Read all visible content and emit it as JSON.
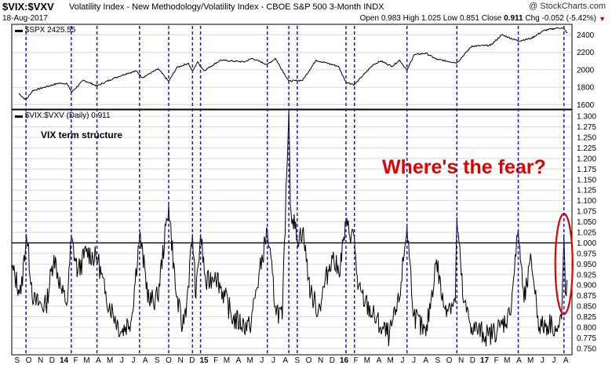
{
  "header": {
    "symbol": "$VIX:$VXV",
    "description": "Volatility Index - New Methodology/Volatility Index - CBOE S&P 500 3-Month INDX",
    "date": "18-Aug-2017",
    "brand": "@ StockCharts.com",
    "open_label": "Open",
    "open_value": "0.983",
    "high_label": "High",
    "high_value": "1.025",
    "low_label": "Low",
    "low_value": "0.851",
    "close_label": "Close",
    "close_value": "0.911",
    "chg_label": "Chg",
    "chg_value": "-0.052 (-5.42%)",
    "down_marker": "▼"
  },
  "colors": {
    "price_line": "#000000",
    "marker_lines": "#1a1acc",
    "annotation": "#e00000",
    "threshold": "#000000",
    "grid": "#d9d9d9"
  },
  "chart_data": [
    {
      "type": "line",
      "legend": "$SPX 2425.55",
      "ylim": [
        1550,
        2520
      ],
      "yticks": [
        1600,
        1800,
        2000,
        2200,
        2400
      ],
      "ytick_labels": [
        "1600",
        "1800",
        "2000",
        "2200",
        "2400"
      ],
      "last_value": 2425.55,
      "series": [
        {
          "x": [
            "2013-09-20",
            "2013-10-08",
            "2013-10-25",
            "2013-11-29",
            "2013-12-31",
            "2014-01-22",
            "2014-02-04",
            "2014-03-07",
            "2014-04-11",
            "2014-05-23",
            "2014-06-30",
            "2014-07-23",
            "2014-08-07",
            "2014-09-18",
            "2014-10-15",
            "2014-11-05",
            "2014-12-05",
            "2014-12-16",
            "2014-12-29",
            "2015-01-15",
            "2015-02-27",
            "2015-04-30",
            "2015-05-20",
            "2015-06-29",
            "2015-07-20",
            "2015-08-24",
            "2015-09-29",
            "2015-11-03",
            "2015-12-31",
            "2016-01-20",
            "2016-02-11",
            "2016-03-31",
            "2016-04-20",
            "2016-05-19",
            "2016-06-08",
            "2016-06-27",
            "2016-07-15",
            "2016-08-15",
            "2016-09-12",
            "2016-11-04",
            "2016-12-13",
            "2017-01-31",
            "2017-03-01",
            "2017-04-13",
            "2017-05-17",
            "2017-06-19",
            "2017-07-26",
            "2017-08-08",
            "2017-08-18"
          ],
          "values": [
            1725,
            1655,
            1760,
            1805,
            1845,
            1845,
            1745,
            1880,
            1815,
            1900,
            1960,
            1985,
            1910,
            2010,
            1865,
            2025,
            2075,
            1980,
            2090,
            1990,
            2110,
            2090,
            2130,
            2060,
            2130,
            1870,
            1880,
            2110,
            2040,
            1860,
            1830,
            2060,
            2100,
            2040,
            2110,
            1990,
            2170,
            2190,
            2120,
            2080,
            2270,
            2280,
            2400,
            2330,
            2360,
            2450,
            2480,
            2475,
            2425.55
          ]
        }
      ]
    },
    {
      "type": "line",
      "legend": "$VIX:$VXV (Daily) 0.911",
      "title": "VIX term structure",
      "ylim": [
        0.735,
        1.315
      ],
      "yticks": [
        0.75,
        0.775,
        0.8,
        0.825,
        0.85,
        0.875,
        0.9,
        0.925,
        0.95,
        0.975,
        1.0,
        1.025,
        1.05,
        1.075,
        1.1,
        1.125,
        1.15,
        1.175,
        1.2,
        1.225,
        1.25,
        1.275,
        1.3
      ],
      "ytick_labels": [
        "0.750",
        "0.775",
        "0.800",
        "0.825",
        "0.850",
        "0.875",
        "0.900",
        "0.925",
        "0.950",
        "0.975",
        "1.000",
        "1.025",
        "1.050",
        "1.075",
        "1.100",
        "1.125",
        "1.150",
        "1.175",
        "1.200",
        "1.225",
        "1.250",
        "1.275",
        "1.300"
      ],
      "threshold": 1.0,
      "last_value": 0.911,
      "annotation": "Where's the fear?",
      "series": [
        {
          "x": [
            "2013-09-01",
            "2013-09-25",
            "2013-10-09",
            "2013-10-28",
            "2013-11-29",
            "2013-12-20",
            "2014-01-10",
            "2014-01-24",
            "2014-02-03",
            "2014-02-20",
            "2014-03-14",
            "2014-04-14",
            "2014-05-02",
            "2014-06-13",
            "2014-07-10",
            "2014-07-31",
            "2014-08-25",
            "2014-09-16",
            "2014-10-15",
            "2014-11-03",
            "2014-11-20",
            "2014-12-01",
            "2014-12-16",
            "2014-12-25",
            "2015-01-06",
            "2015-01-20",
            "2015-02-13",
            "2015-04-01",
            "2015-05-14",
            "2015-06-29",
            "2015-07-20",
            "2015-08-07",
            "2015-08-24",
            "2015-08-28",
            "2015-09-15",
            "2015-09-29",
            "2015-10-20",
            "2015-11-09",
            "2015-12-14",
            "2016-01-01",
            "2016-01-20",
            "2016-02-11",
            "2016-02-20",
            "2016-03-10",
            "2016-04-19",
            "2016-05-12",
            "2016-06-06",
            "2016-06-27",
            "2016-07-15",
            "2016-08-15",
            "2016-09-12",
            "2016-09-30",
            "2016-10-31",
            "2016-11-04",
            "2016-11-21",
            "2016-12-13",
            "2017-01-25",
            "2017-02-24",
            "2017-03-22",
            "2017-04-13",
            "2017-04-28",
            "2017-05-17",
            "2017-06-07",
            "2017-07-10",
            "2017-07-24",
            "2017-08-04",
            "2017-08-10",
            "2017-08-14",
            "2017-08-18"
          ],
          "values": [
            0.94,
            0.88,
            1.02,
            0.86,
            0.85,
            0.97,
            0.88,
            0.86,
            1.01,
            0.93,
            0.98,
            0.96,
            0.88,
            0.79,
            0.82,
            1.02,
            0.86,
            0.87,
            1.09,
            0.88,
            0.8,
            0.86,
            1.02,
            0.87,
            1.02,
            0.9,
            0.93,
            0.82,
            0.8,
            1.03,
            0.85,
            0.82,
            1.33,
            1.09,
            1.01,
            1.03,
            0.88,
            0.84,
            0.97,
            0.93,
            1.04,
            1.01,
            0.89,
            0.86,
            0.8,
            0.78,
            0.86,
            1.04,
            0.83,
            0.78,
            0.96,
            0.85,
            0.86,
            1.06,
            0.86,
            0.8,
            0.78,
            0.8,
            0.83,
            1.03,
            0.86,
            0.96,
            0.8,
            0.81,
            0.79,
            0.82,
            1.02,
            0.88,
            0.911
          ]
        }
      ]
    },
    {
      "type": "event_markers",
      "dates": [
        "2013-10-08",
        "2014-02-03",
        "2014-04-11",
        "2014-07-31",
        "2014-10-15",
        "2014-12-16",
        "2015-01-06",
        "2015-06-29",
        "2015-08-24",
        "2015-09-15",
        "2016-01-20",
        "2016-02-11",
        "2016-06-27",
        "2016-11-04",
        "2017-04-13",
        "2017-08-10"
      ]
    },
    {
      "type": "time_axis",
      "start": "2013-09-01",
      "end": "2017-08-31",
      "labels": [
        {
          "date": "2013-09-15",
          "text": "S"
        },
        {
          "date": "2013-10-15",
          "text": "O"
        },
        {
          "date": "2013-11-15",
          "text": "N"
        },
        {
          "date": "2013-12-15",
          "text": "D"
        },
        {
          "date": "2014-01-15",
          "text": "14"
        },
        {
          "date": "2014-02-15",
          "text": "F"
        },
        {
          "date": "2014-03-15",
          "text": "M"
        },
        {
          "date": "2014-04-15",
          "text": "A"
        },
        {
          "date": "2014-05-15",
          "text": "M"
        },
        {
          "date": "2014-06-15",
          "text": "J"
        },
        {
          "date": "2014-07-15",
          "text": "J"
        },
        {
          "date": "2014-08-15",
          "text": "A"
        },
        {
          "date": "2014-09-15",
          "text": "S"
        },
        {
          "date": "2014-10-15",
          "text": "O"
        },
        {
          "date": "2014-11-15",
          "text": "N"
        },
        {
          "date": "2014-12-15",
          "text": "D"
        },
        {
          "date": "2015-01-15",
          "text": "15"
        },
        {
          "date": "2015-02-15",
          "text": "F"
        },
        {
          "date": "2015-03-15",
          "text": "M"
        },
        {
          "date": "2015-04-15",
          "text": "A"
        },
        {
          "date": "2015-05-15",
          "text": "M"
        },
        {
          "date": "2015-06-15",
          "text": "J"
        },
        {
          "date": "2015-07-15",
          "text": "J"
        },
        {
          "date": "2015-08-15",
          "text": "A"
        },
        {
          "date": "2015-09-15",
          "text": "S"
        },
        {
          "date": "2015-10-15",
          "text": "O"
        },
        {
          "date": "2015-11-15",
          "text": "N"
        },
        {
          "date": "2015-12-15",
          "text": "D"
        },
        {
          "date": "2016-01-15",
          "text": "16"
        },
        {
          "date": "2016-02-15",
          "text": "F"
        },
        {
          "date": "2016-03-15",
          "text": "M"
        },
        {
          "date": "2016-04-15",
          "text": "A"
        },
        {
          "date": "2016-05-15",
          "text": "M"
        },
        {
          "date": "2016-06-15",
          "text": "J"
        },
        {
          "date": "2016-07-15",
          "text": "J"
        },
        {
          "date": "2016-08-15",
          "text": "A"
        },
        {
          "date": "2016-09-15",
          "text": "S"
        },
        {
          "date": "2016-10-15",
          "text": "O"
        },
        {
          "date": "2016-11-15",
          "text": "N"
        },
        {
          "date": "2016-12-15",
          "text": "D"
        },
        {
          "date": "2017-01-15",
          "text": "17"
        },
        {
          "date": "2017-02-15",
          "text": "F"
        },
        {
          "date": "2017-03-15",
          "text": "M"
        },
        {
          "date": "2017-04-15",
          "text": "A"
        },
        {
          "date": "2017-05-15",
          "text": "M"
        },
        {
          "date": "2017-06-15",
          "text": "J"
        },
        {
          "date": "2017-07-15",
          "text": "J"
        },
        {
          "date": "2017-08-15",
          "text": "A"
        }
      ]
    }
  ]
}
